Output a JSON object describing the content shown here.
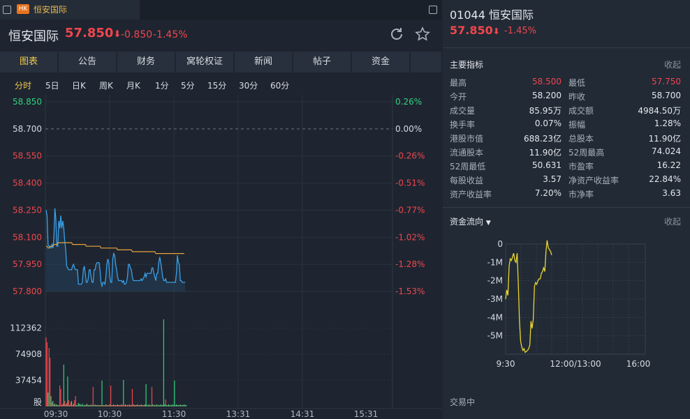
{
  "window": {
    "tab_badge": "HK",
    "tab_title": "恒安国际"
  },
  "header": {
    "name": "恒安国际",
    "price": "57.850",
    "arrow": "⬇",
    "change": "-0.850",
    "change_pct": "-1.45%"
  },
  "nav": {
    "tabs": [
      "图表",
      "公告",
      "财务",
      "窝轮权证",
      "新闻",
      "帖子",
      "资金"
    ],
    "active": 0
  },
  "periods": {
    "items": [
      "分时",
      "5日",
      "日K",
      "周K",
      "月K",
      "1分",
      "5分",
      "15分",
      "30分",
      "60分"
    ],
    "active": 0
  },
  "colors": {
    "up": "#f0464e",
    "down": "#2fd17d",
    "price_line": "#3aa0e8",
    "avg_line": "#e8a33a",
    "accent": "#f2c94c",
    "flow_line": "#e9d633"
  },
  "chart_data": [
    {
      "type": "line",
      "title": "",
      "x_ticks": [
        "09:30",
        "10:30",
        "11:30",
        "13:31",
        "14:31",
        "15:31"
      ],
      "left_ticks": [
        "58.850",
        "58.700",
        "58.550",
        "58.400",
        "58.250",
        "58.100",
        "57.950",
        "57.800"
      ],
      "right_ticks": [
        "0.26%",
        "0.00%",
        "-0.26%",
        "-0.51%",
        "-0.77%",
        "-1.02%",
        "-1.28%",
        "-1.53%"
      ],
      "ylim": [
        57.8,
        58.85
      ],
      "prev_close": 58.7,
      "series": [
        {
          "values": [
            58.25,
            58.22,
            58.06,
            58.05,
            58.05,
            58.04,
            58.06,
            58.04,
            58.1,
            58.26,
            58.2,
            58.05,
            58.05,
            58.19,
            58.15,
            58.22,
            58.15,
            58.19,
            58.15,
            58.08,
            58.03,
            57.94,
            57.93,
            57.92,
            57.92,
            57.92,
            57.92,
            57.94,
            57.95,
            57.93,
            57.92,
            57.92,
            57.92,
            57.84,
            57.84,
            57.84,
            57.84,
            57.85,
            57.92,
            57.94,
            57.9,
            57.85,
            57.85,
            57.87,
            57.92,
            57.92,
            57.88,
            57.85,
            57.85,
            57.92,
            57.92,
            57.95,
            57.96,
            57.96,
            57.96,
            57.92,
            57.85,
            57.83,
            57.85,
            57.85,
            57.84,
            57.88,
            57.95,
            57.98,
            57.96,
            57.88,
            57.85,
            57.85,
            57.98,
            58.01,
            58.0,
            57.95,
            57.92,
            57.88,
            57.86,
            57.86,
            57.86,
            57.86,
            57.85,
            57.86,
            57.84,
            57.84,
            57.85,
            57.88,
            57.95,
            57.95,
            57.93,
            57.92,
            57.88,
            57.86,
            57.86,
            57.86,
            57.86,
            57.86,
            57.86,
            57.86,
            57.86,
            57.87,
            57.86,
            57.87,
            57.88,
            57.9,
            57.88,
            57.9,
            57.9,
            57.9,
            57.9,
            57.9,
            57.93,
            57.93,
            57.9,
            57.88,
            57.86,
            57.9,
            57.9,
            57.96,
            57.99,
            57.96,
            57.92,
            57.88,
            57.86,
            57.86,
            57.87,
            57.85,
            57.85,
            57.85,
            57.85,
            57.85,
            57.85,
            57.85,
            57.85,
            57.85,
            57.85,
            57.9,
            58.0,
            57.96,
            57.95,
            57.86,
            57.86,
            57.85,
            57.85,
            57.85,
            57.85
          ]
        },
        {
          "values": [
            58.05,
            58.05,
            58.04,
            58.04,
            58.05,
            58.05,
            58.05,
            58.05,
            58.06,
            58.06,
            58.06,
            58.06,
            58.07,
            58.07,
            58.07,
            58.07,
            58.07,
            58.07,
            58.07,
            58.07,
            58.07,
            58.07,
            58.07,
            58.07,
            58.07,
            58.07,
            58.07,
            58.06,
            58.06,
            58.06,
            58.06,
            58.06,
            58.06,
            58.06,
            58.06,
            58.06,
            58.06,
            58.06,
            58.06,
            58.06,
            58.06,
            58.05,
            58.05,
            58.05,
            58.05,
            58.05,
            58.05,
            58.05,
            58.05,
            58.05,
            58.05,
            58.05,
            58.05,
            58.05,
            58.05,
            58.05,
            58.04,
            58.04,
            58.04,
            58.04,
            58.04,
            58.04,
            58.04,
            58.04,
            58.04,
            58.04,
            58.04,
            58.04,
            58.04,
            58.04,
            58.04,
            58.04,
            58.04,
            58.03,
            58.03,
            58.03,
            58.03,
            58.03,
            58.03,
            58.03,
            58.03,
            58.03,
            58.03,
            58.03,
            58.03,
            58.03,
            58.03,
            58.03,
            58.02,
            58.02,
            58.02,
            58.02,
            58.02,
            58.02,
            58.02,
            58.02,
            58.02,
            58.02,
            58.02,
            58.02,
            58.02,
            58.02,
            58.02,
            58.02,
            58.02,
            58.02,
            58.02,
            58.02,
            58.02,
            58.02,
            58.02,
            58.02,
            58.01,
            58.01,
            58.01,
            58.01,
            58.01,
            58.01,
            58.01,
            58.01,
            58.01,
            58.01,
            58.01,
            58.01,
            58.01,
            58.01,
            58.01,
            58.01,
            58.01,
            58.01,
            58.01,
            58.01,
            58.01,
            58.01,
            58.01,
            58.01,
            58.01,
            58.01,
            58.01,
            58.01,
            58.01,
            58.01
          ]
        }
      ]
    },
    {
      "type": "bar",
      "title": "",
      "y_ticks": [
        "112362",
        "74908",
        "37454",
        "股"
      ],
      "ylim": [
        0,
        125000
      ],
      "volume": [
        99000,
        92000,
        20000,
        84000,
        70000,
        15000,
        6000,
        8000,
        3000,
        4000,
        2000,
        3000,
        2000,
        2000,
        30000,
        25000,
        2000,
        4000,
        60000,
        8000,
        3000,
        5000,
        43000,
        9000,
        2000,
        6000,
        8000,
        2000,
        4000,
        9000,
        15000,
        2000,
        2000,
        5000,
        4000,
        3000,
        2000,
        4000,
        2000,
        2000,
        2000,
        3000,
        4000,
        2000,
        2000,
        2000,
        3000,
        2000,
        2000,
        2000,
        3000,
        2000,
        2000,
        2000,
        2000,
        2000,
        2000,
        3000,
        2000,
        2000,
        2000,
        3000,
        2000,
        2000,
        2000,
        3000,
        2000,
        2000,
        2000,
        3000,
        2000,
        2000,
        2000,
        3000,
        2000,
        2000,
        2000,
        3000,
        2000,
        2000,
        2000,
        3000,
        2000,
        2000,
        2000,
        3000,
        2000,
        2000,
        2000,
        3000,
        2000,
        2000,
        2000,
        3000,
        2000,
        2000,
        2000,
        3000,
        2000,
        2000,
        2000,
        3000,
        2000,
        2000,
        2000,
        3000,
        2000,
        2000,
        2000,
        3000,
        2000,
        2000,
        2000,
        3000,
        2000,
        2000,
        2000,
        3000,
        2000,
        2000,
        2000,
        3000,
        2000,
        2000,
        2000,
        3000,
        2000,
        2000,
        2000,
        3000,
        2000,
        2000,
        2000,
        3000,
        2000,
        2000,
        2000,
        3000,
        2000,
        2000,
        2000,
        3000,
        2000,
        2000
      ],
      "volume_color": [
        "up",
        "up",
        "down",
        "up",
        "up",
        "down",
        "up",
        "down",
        "up",
        "down",
        "up",
        "down",
        "up",
        "down",
        "up",
        "up",
        "down",
        "up",
        "down",
        "up",
        "down",
        "up",
        "down",
        "up",
        "down",
        "up",
        "down",
        "up",
        "down",
        "up",
        "up",
        "down",
        "up",
        "down",
        "up",
        "down",
        "up",
        "down",
        "up",
        "down",
        "up",
        "down",
        "up",
        "down",
        "up",
        "down",
        "up",
        "down",
        "up",
        "down",
        "up",
        "down",
        "up",
        "down",
        "up",
        "down",
        "up",
        "down",
        "up",
        "down",
        "up",
        "down",
        "up",
        "down",
        "up",
        "down",
        "up",
        "down",
        "up",
        "down",
        "up",
        "down",
        "up",
        "down",
        "up",
        "down",
        "up",
        "down",
        "up",
        "down",
        "up",
        "down",
        "up",
        "down",
        "up",
        "down",
        "up",
        "down",
        "up",
        "down",
        "up",
        "down",
        "up",
        "down",
        "up",
        "down",
        "up",
        "down",
        "up",
        "down",
        "up",
        "down",
        "up",
        "down",
        "up",
        "down",
        "up",
        "down",
        "up",
        "down",
        "up",
        "down",
        "up",
        "down",
        "up",
        "down",
        "up",
        "down",
        "up",
        "down",
        "up",
        "down",
        "up",
        "down",
        "up",
        "down",
        "up",
        "down",
        "up",
        "down",
        "up",
        "down",
        "up",
        "down",
        "up",
        "down",
        "up",
        "down",
        "up",
        "down",
        "up",
        "down",
        "up",
        "down"
      ],
      "spikes": [
        {
          "i": 48,
          "v": 28000,
          "c": "up"
        },
        {
          "i": 57,
          "v": 37000,
          "c": "down"
        },
        {
          "i": 66,
          "v": 30000,
          "c": "up"
        },
        {
          "i": 79,
          "v": 38000,
          "c": "down"
        },
        {
          "i": 88,
          "v": 25000,
          "c": "up"
        },
        {
          "i": 102,
          "v": 32000,
          "c": "down"
        },
        {
          "i": 108,
          "v": 28000,
          "c": "up"
        },
        {
          "i": 120,
          "v": 125000,
          "c": "down"
        },
        {
          "i": 122,
          "v": 10000,
          "c": "up"
        },
        {
          "i": 131,
          "v": 37000,
          "c": "down"
        }
      ]
    },
    {
      "type": "line",
      "title": "",
      "x_ticks": [
        "9:30",
        "12:00/13:00",
        "16:00"
      ],
      "y_ticks": [
        "0",
        "-1M",
        "-2M",
        "-3M",
        "-4M",
        "-5M"
      ],
      "ylim": [
        -6000000,
        0
      ],
      "series": [
        {
          "values": [
            -3000000,
            -2500000,
            -2800000,
            -1200000,
            -800000,
            -900000,
            -700000,
            -500000,
            -900000,
            -1000000,
            -500000,
            -2200000,
            -4200000,
            -5300000,
            -5600000,
            -5800000,
            -5700000,
            -5900000,
            -5850000,
            -5800000,
            -5700000,
            -5500000,
            -4200000,
            -4600000,
            -4100000,
            -2300000,
            -2100000,
            -2200000,
            -2000000,
            -1900000,
            -1900000,
            -1600000,
            -1500000,
            -1300000,
            -1500000,
            -400000,
            200000,
            -200000,
            -300000,
            -400000,
            -600000
          ]
        }
      ]
    }
  ],
  "right": {
    "code_name": "01044 恒安国际",
    "price": "57.850",
    "arrow": "⬇",
    "change_pct": "-1.45%",
    "metrics_title": "主要指标",
    "collapse_label": "收起",
    "metrics": [
      {
        "l": "最高",
        "v": "58.500",
        "c": "up",
        "l2": "最低",
        "v2": "57.750",
        "c2": "up"
      },
      {
        "l": "今开",
        "v": "58.200",
        "c": "",
        "l2": "昨收",
        "v2": "58.700",
        "c2": ""
      },
      {
        "l": "成交量",
        "v": "85.95万",
        "c": "",
        "l2": "成交额",
        "v2": "4984.50万",
        "c2": ""
      },
      {
        "l": "换手率",
        "v": "0.07%",
        "c": "",
        "l2": "振幅",
        "v2": "1.28%",
        "c2": ""
      },
      {
        "l": "港股市值",
        "v": "688.23亿",
        "c": "",
        "l2": "总股本",
        "v2": "11.90亿",
        "c2": ""
      },
      {
        "l": "流通股本",
        "v": "11.90亿",
        "c": "",
        "l2": "52周最高",
        "v2": "74.024",
        "c2": ""
      },
      {
        "l": "52周最低",
        "v": "50.631",
        "c": "",
        "l2": "市盈率",
        "v2": "16.22",
        "c2": ""
      },
      {
        "l": "每股收益",
        "v": "3.57",
        "c": "",
        "l2": "净资产收益率",
        "v2": "22.84%",
        "c2": ""
      },
      {
        "l": "资产收益率",
        "v": "7.20%",
        "c": "",
        "l2": "市净率",
        "v2": "3.63",
        "c2": ""
      }
    ],
    "flow_title": "资金流向",
    "flow_collapse": "收起",
    "trading_status": "交易中"
  }
}
